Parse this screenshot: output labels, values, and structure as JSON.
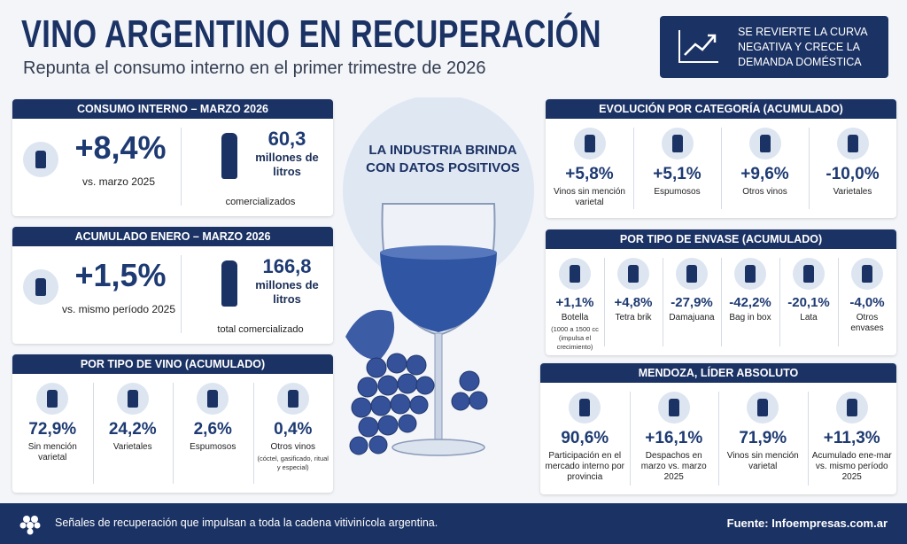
{
  "header": {
    "title": "VINO ARGENTINO EN RECUPERACIÓN",
    "subtitle": "Repunta el consumo interno en el primer trimestre de 2026",
    "badge": "SE REVIERTE LA CURVA NEGATIVA Y CRECE LA DEMANDA DOMÉSTICA"
  },
  "consumo_interno": {
    "title": "CONSUMO INTERNO – MARZO 2026",
    "stats": [
      {
        "value": "+8,4%",
        "label": "vs. marzo 2025"
      },
      {
        "value": "60,3",
        "unit": "millones de litros",
        "label": "comercializados"
      }
    ]
  },
  "acumulado": {
    "title": "ACUMULADO ENERO – MARZO 2026",
    "stats": [
      {
        "value": "+1,5%",
        "label": "vs. mismo período 2025"
      },
      {
        "value": "166,8",
        "unit": "millones de litros",
        "label": "total comercializado"
      }
    ]
  },
  "tipo_vino": {
    "title": "POR TIPO DE VINO (ACUMULADO)",
    "items": [
      {
        "value": "72,9%",
        "label": "Sin mención varietal"
      },
      {
        "value": "24,2%",
        "label": "Varietales"
      },
      {
        "value": "2,6%",
        "label": "Espumosos"
      },
      {
        "value": "0,4%",
        "label": "Otros vinos",
        "note": "(cóctel, gasificado, ritual y especial)"
      }
    ]
  },
  "center": {
    "text": "LA INDUSTRIA BRINDA CON DATOS POSITIVOS"
  },
  "categoria": {
    "title": "EVOLUCIÓN POR CATEGORÍA (ACUMULADO)",
    "items": [
      {
        "value": "+5,8%",
        "label": "Vinos sin mención varietal"
      },
      {
        "value": "+5,1%",
        "label": "Espumosos"
      },
      {
        "value": "+9,6%",
        "label": "Otros vinos"
      },
      {
        "value": "-10,0%",
        "label": "Varietales"
      }
    ]
  },
  "envase": {
    "title": "POR TIPO DE ENVASE (ACUMULADO)",
    "items": [
      {
        "value": "+1,1%",
        "label": "Botella",
        "note": "(1000 a 1500 cc (impulsa el crecimiento)"
      },
      {
        "value": "+4,8%",
        "label": "Tetra brik"
      },
      {
        "value": "-27,9%",
        "label": "Damajuana"
      },
      {
        "value": "-42,2%",
        "label": "Bag in box"
      },
      {
        "value": "-20,1%",
        "label": "Lata"
      },
      {
        "value": "-4,0%",
        "label": "Otros envases"
      }
    ]
  },
  "mendoza": {
    "title": "MENDOZA, LÍDER ABSOLUTO",
    "items": [
      {
        "value": "90,6%",
        "label": "Participación en el mercado interno por provincia"
      },
      {
        "value": "+16,1%",
        "label": "Despachos en marzo vs. marzo 2025"
      },
      {
        "value": "71,9%",
        "label": "Vinos sin mención varietal"
      },
      {
        "value": "+11,3%",
        "label": "Acumulado ene-mar vs. mismo período 2025"
      }
    ]
  },
  "footer": {
    "text": "Señales de recuperación que impulsan a toda la cadena vitivinícola argentina.",
    "source": "Fuente: Infoempresas.com.ar"
  }
}
